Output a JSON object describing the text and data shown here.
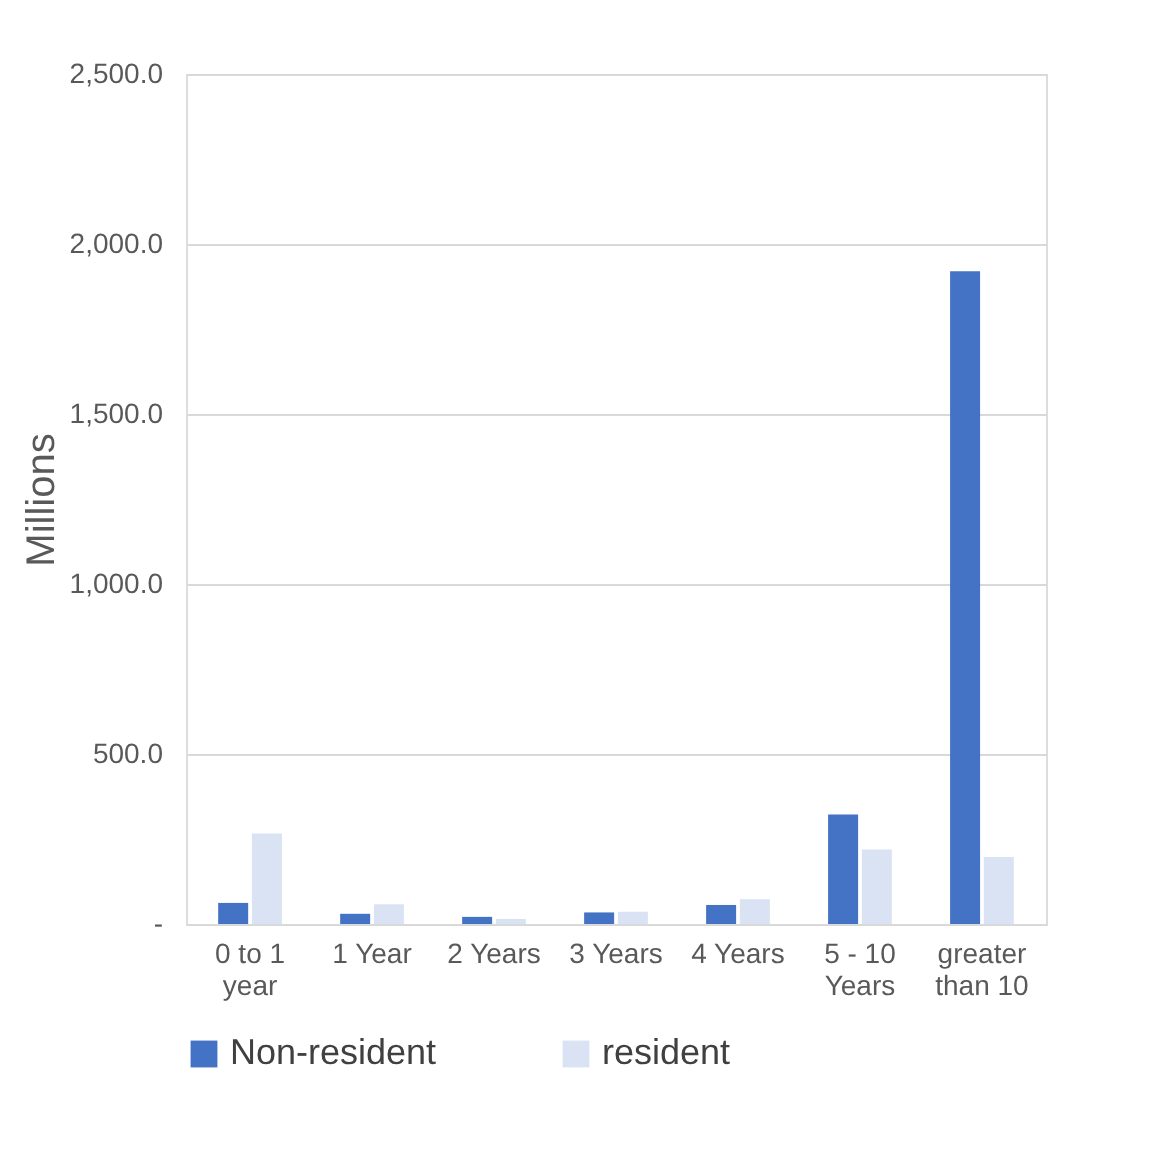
{
  "chart_data": {
    "type": "bar",
    "ylabel": "Millions",
    "categories": [
      "0 to 1 year",
      "1 Year",
      "2 Years",
      "3 Years",
      "4 Years",
      "5 - 10 Years",
      "greater than 10"
    ],
    "series": [
      {
        "name": "Non-resident",
        "color": "#4472c4",
        "values": [
          62,
          30,
          21,
          34,
          56,
          322,
          1920
        ]
      },
      {
        "name": "resident",
        "color": "#dae3f3",
        "values": [
          266,
          58,
          15,
          36,
          73,
          219,
          197
        ]
      }
    ],
    "ylim": [
      0,
      2500
    ],
    "yticks": [
      {
        "value": 0,
        "label": "-"
      },
      {
        "value": 500,
        "label": "500.0"
      },
      {
        "value": 1000,
        "label": "1,000.0"
      },
      {
        "value": 1500,
        "label": "1,500.0"
      },
      {
        "value": 2000,
        "label": "2,000.0"
      },
      {
        "value": 2500,
        "label": "2,500.0"
      }
    ],
    "grid": "y",
    "legend": "bottom"
  }
}
